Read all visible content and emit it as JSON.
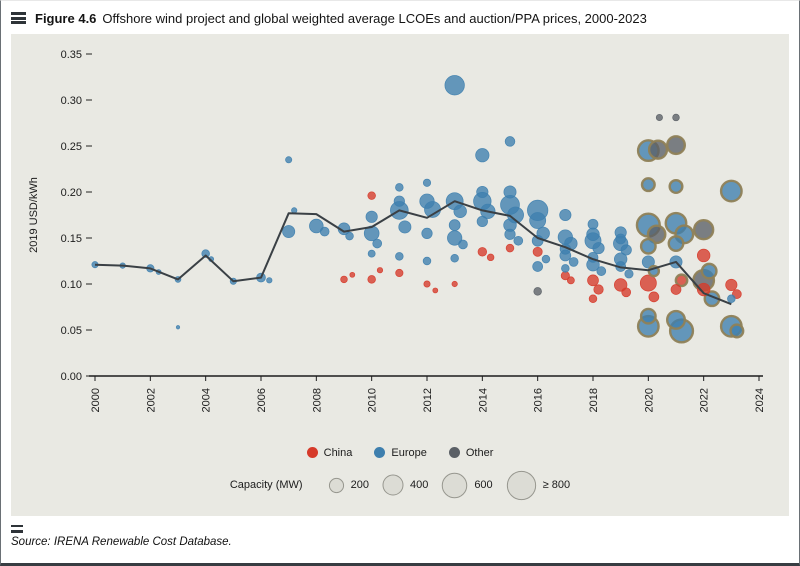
{
  "figure": {
    "label": "Figure 4.6",
    "title": "Offshore wind project and global weighted average LCOEs and auction/PPA prices, 2000-2023"
  },
  "source": "Source: IRENA Renewable Cost Database.",
  "chart_data": {
    "type": "scatter",
    "title": "Offshore wind project and global weighted average LCOEs and auction/PPA prices, 2000-2023",
    "xlabel": "",
    "ylabel": "2019 USD/kWh",
    "xlim": [
      2000,
      2024
    ],
    "ylim": [
      0,
      0.35
    ],
    "xticks": [
      2000,
      2002,
      2004,
      2006,
      2008,
      2010,
      2012,
      2014,
      2016,
      2018,
      2020,
      2022,
      2024
    ],
    "yticks": [
      0.0,
      0.05,
      0.1,
      0.15,
      0.2,
      0.25,
      0.3,
      0.35
    ],
    "grid": false,
    "legend": {
      "position": "bottom",
      "groups": [
        {
          "label": "China",
          "color": "#d63a2a"
        },
        {
          "label": "Europe",
          "color": "#3e7fae"
        },
        {
          "label": "Other",
          "color": "#5b6066"
        }
      ]
    },
    "capacity_legend": {
      "label": "Capacity (MW)",
      "entries": [
        {
          "label": "200",
          "mw": 200
        },
        {
          "label": "400",
          "mw": 400
        },
        {
          "label": "600",
          "mw": 600
        },
        {
          "label": "≥ 800",
          "mw": 800
        }
      ]
    },
    "colors": {
      "china": "#d63a2a",
      "europe": "#3e7fae",
      "other": "#5b6066",
      "auction_outline": "#8f8157",
      "avg_line": "#3a4045",
      "panel_bg": "#e9e9e3",
      "capacity_fill": "#dcdcd5",
      "capacity_stroke": "#97978f"
    },
    "avg_line": {
      "name": "Global weighted average",
      "x": [
        2000,
        2001,
        2002,
        2003,
        2004,
        2005,
        2006,
        2007,
        2008,
        2009,
        2010,
        2011,
        2012,
        2013,
        2014,
        2015,
        2016,
        2017,
        2018,
        2019,
        2020,
        2021,
        2022,
        2023
      ],
      "y": [
        0.121,
        0.12,
        0.117,
        0.105,
        0.131,
        0.103,
        0.107,
        0.177,
        0.176,
        0.157,
        0.162,
        0.18,
        0.172,
        0.19,
        0.18,
        0.174,
        0.15,
        0.14,
        0.127,
        0.118,
        0.115,
        0.124,
        0.09,
        0.078
      ]
    },
    "points_format": [
      "year",
      "lcoe_usd_per_kwh",
      "capacity_mw",
      "group",
      "auction_outlined"
    ],
    "points": [
      [
        2000,
        0.121,
        40,
        "europe",
        0
      ],
      [
        2001,
        0.12,
        30,
        "europe",
        0
      ],
      [
        2002,
        0.117,
        55,
        "europe",
        0
      ],
      [
        2002.3,
        0.113,
        25,
        "europe",
        0
      ],
      [
        2003,
        0.105,
        35,
        "europe",
        0
      ],
      [
        2003,
        0.053,
        12,
        "europe",
        0
      ],
      [
        2004,
        0.133,
        60,
        "europe",
        0
      ],
      [
        2004.2,
        0.127,
        25,
        "europe",
        0
      ],
      [
        2005,
        0.103,
        40,
        "europe",
        0
      ],
      [
        2006,
        0.107,
        80,
        "europe",
        0
      ],
      [
        2006.3,
        0.104,
        30,
        "europe",
        0
      ],
      [
        2007,
        0.235,
        40,
        "europe",
        0
      ],
      [
        2007,
        0.157,
        150,
        "europe",
        0
      ],
      [
        2007.2,
        0.18,
        30,
        "europe",
        0
      ],
      [
        2008,
        0.163,
        190,
        "europe",
        0
      ],
      [
        2008.3,
        0.157,
        80,
        "europe",
        0
      ],
      [
        2009,
        0.16,
        140,
        "europe",
        0
      ],
      [
        2009.2,
        0.152,
        60,
        "europe",
        0
      ],
      [
        2009,
        0.105,
        45,
        "china",
        0
      ],
      [
        2009.3,
        0.11,
        25,
        "china",
        0
      ],
      [
        2010,
        0.196,
        60,
        "china",
        0
      ],
      [
        2010,
        0.173,
        130,
        "europe",
        0
      ],
      [
        2010,
        0.155,
        220,
        "europe",
        0
      ],
      [
        2010.2,
        0.144,
        80,
        "europe",
        0
      ],
      [
        2010,
        0.133,
        50,
        "europe",
        0
      ],
      [
        2010,
        0.105,
        60,
        "china",
        0
      ],
      [
        2010.3,
        0.115,
        30,
        "china",
        0
      ],
      [
        2011,
        0.205,
        60,
        "europe",
        0
      ],
      [
        2011,
        0.19,
        110,
        "europe",
        0
      ],
      [
        2011,
        0.18,
        320,
        "europe",
        0
      ],
      [
        2011.2,
        0.162,
        150,
        "europe",
        0
      ],
      [
        2011,
        0.13,
        60,
        "europe",
        0
      ],
      [
        2011,
        0.112,
        55,
        "china",
        0
      ],
      [
        2012,
        0.21,
        55,
        "europe",
        0
      ],
      [
        2012,
        0.19,
        210,
        "europe",
        0
      ],
      [
        2012.2,
        0.181,
        260,
        "europe",
        0
      ],
      [
        2012,
        0.155,
        110,
        "europe",
        0
      ],
      [
        2012,
        0.125,
        60,
        "europe",
        0
      ],
      [
        2012,
        0.1,
        40,
        "china",
        0
      ],
      [
        2012.3,
        0.093,
        25,
        "china",
        0
      ],
      [
        2013,
        0.316,
        380,
        "europe",
        0
      ],
      [
        2013,
        0.19,
        290,
        "europe",
        0
      ],
      [
        2013.2,
        0.179,
        160,
        "europe",
        0
      ],
      [
        2013,
        0.164,
        120,
        "europe",
        0
      ],
      [
        2013,
        0.15,
        210,
        "europe",
        0
      ],
      [
        2013.3,
        0.143,
        80,
        "europe",
        0
      ],
      [
        2013,
        0.128,
        60,
        "europe",
        0
      ],
      [
        2013,
        0.1,
        30,
        "china",
        0
      ],
      [
        2014,
        0.24,
        180,
        "europe",
        0
      ],
      [
        2014,
        0.2,
        130,
        "europe",
        0
      ],
      [
        2014,
        0.19,
        310,
        "europe",
        0
      ],
      [
        2014.2,
        0.179,
        210,
        "europe",
        0
      ],
      [
        2014,
        0.168,
        110,
        "europe",
        0
      ],
      [
        2014,
        0.135,
        75,
        "china",
        0
      ],
      [
        2014.3,
        0.129,
        45,
        "china",
        0
      ],
      [
        2015,
        0.255,
        95,
        "europe",
        0
      ],
      [
        2015,
        0.2,
        150,
        "europe",
        0
      ],
      [
        2015,
        0.186,
        360,
        "europe",
        0
      ],
      [
        2015.2,
        0.175,
        260,
        "europe",
        0
      ],
      [
        2015,
        0.164,
        160,
        "europe",
        0
      ],
      [
        2015,
        0.154,
        110,
        "europe",
        0
      ],
      [
        2015.3,
        0.147,
        80,
        "europe",
        0
      ],
      [
        2015,
        0.139,
        60,
        "china",
        0
      ],
      [
        2016,
        0.18,
        420,
        "europe",
        0
      ],
      [
        2016,
        0.169,
        260,
        "europe",
        0
      ],
      [
        2016.2,
        0.155,
        160,
        "europe",
        0
      ],
      [
        2016,
        0.147,
        120,
        "europe",
        0
      ],
      [
        2016,
        0.135,
        85,
        "china",
        0
      ],
      [
        2016.3,
        0.127,
        60,
        "europe",
        0
      ],
      [
        2016,
        0.119,
        100,
        "europe",
        0
      ],
      [
        2016,
        0.092,
        60,
        "other",
        0
      ],
      [
        2017,
        0.175,
        130,
        "europe",
        0
      ],
      [
        2017,
        0.151,
        210,
        "europe",
        0
      ],
      [
        2017.2,
        0.144,
        160,
        "europe",
        0
      ],
      [
        2017,
        0.138,
        110,
        "europe",
        0
      ],
      [
        2017,
        0.131,
        120,
        "europe",
        0
      ],
      [
        2017.3,
        0.124,
        80,
        "europe",
        0
      ],
      [
        2017,
        0.117,
        60,
        "europe",
        0
      ],
      [
        2017,
        0.109,
        70,
        "china",
        0
      ],
      [
        2017.2,
        0.104,
        50,
        "china",
        0
      ],
      [
        2018,
        0.165,
        100,
        "europe",
        0
      ],
      [
        2018,
        0.154,
        160,
        "europe",
        0
      ],
      [
        2018,
        0.147,
        260,
        "europe",
        0
      ],
      [
        2018.2,
        0.139,
        130,
        "europe",
        0
      ],
      [
        2018,
        0.129,
        100,
        "europe",
        0
      ],
      [
        2018,
        0.121,
        160,
        "europe",
        0
      ],
      [
        2018.3,
        0.114,
        80,
        "europe",
        0
      ],
      [
        2018,
        0.104,
        120,
        "china",
        0
      ],
      [
        2018.2,
        0.094,
        90,
        "china",
        0
      ],
      [
        2018,
        0.084,
        60,
        "china",
        0
      ],
      [
        2019,
        0.156,
        130,
        "europe",
        0
      ],
      [
        2019,
        0.149,
        100,
        "europe",
        0
      ],
      [
        2019,
        0.144,
        210,
        "europe",
        0
      ],
      [
        2019.2,
        0.137,
        110,
        "europe",
        0
      ],
      [
        2019,
        0.127,
        160,
        "europe",
        0
      ],
      [
        2019,
        0.119,
        100,
        "europe",
        0
      ],
      [
        2019.3,
        0.111,
        70,
        "europe",
        0
      ],
      [
        2019,
        0.099,
        160,
        "china",
        0
      ],
      [
        2019.2,
        0.091,
        80,
        "china",
        0
      ],
      [
        2020,
        0.245,
        420,
        "europe",
        1
      ],
      [
        2020.35,
        0.246,
        320,
        "other",
        1
      ],
      [
        2020,
        0.208,
        160,
        "europe",
        1
      ],
      [
        2020,
        0.164,
        520,
        "europe",
        1
      ],
      [
        2020.3,
        0.154,
        300,
        "other",
        1
      ],
      [
        2020,
        0.141,
        210,
        "europe",
        1
      ],
      [
        2020,
        0.124,
        150,
        "europe",
        0
      ],
      [
        2020.2,
        0.114,
        100,
        "europe",
        1
      ],
      [
        2020,
        0.101,
        260,
        "china",
        0
      ],
      [
        2020.2,
        0.086,
        100,
        "china",
        0
      ],
      [
        2020,
        0.065,
        210,
        "europe",
        1
      ],
      [
        2020,
        0.054,
        420,
        "europe",
        1
      ],
      [
        2020.4,
        0.281,
        40,
        "other",
        0
      ],
      [
        2021,
        0.281,
        45,
        "other",
        0
      ],
      [
        2021,
        0.251,
        310,
        "other",
        1
      ],
      [
        2021,
        0.206,
        160,
        "europe",
        1
      ],
      [
        2021,
        0.166,
        420,
        "europe",
        1
      ],
      [
        2021.3,
        0.154,
        310,
        "europe",
        1
      ],
      [
        2021,
        0.144,
        210,
        "europe",
        1
      ],
      [
        2021,
        0.124,
        150,
        "europe",
        0
      ],
      [
        2021.2,
        0.104,
        130,
        "china",
        1
      ],
      [
        2021,
        0.094,
        100,
        "china",
        0
      ],
      [
        2021,
        0.061,
        310,
        "europe",
        1
      ],
      [
        2021.2,
        0.049,
        520,
        "europe",
        1
      ],
      [
        2022,
        0.159,
        360,
        "other",
        1
      ],
      [
        2022,
        0.131,
        160,
        "china",
        0
      ],
      [
        2022.2,
        0.114,
        210,
        "europe",
        1
      ],
      [
        2022,
        0.104,
        420,
        "other",
        1
      ],
      [
        2022,
        0.094,
        160,
        "china",
        0
      ],
      [
        2022.3,
        0.084,
        210,
        "europe",
        1
      ],
      [
        2023,
        0.201,
        420,
        "europe",
        1
      ],
      [
        2023,
        0.099,
        130,
        "china",
        0
      ],
      [
        2023.2,
        0.089,
        80,
        "china",
        0
      ],
      [
        2023,
        0.084,
        60,
        "europe",
        0
      ],
      [
        2023,
        0.054,
        420,
        "europe",
        1
      ],
      [
        2023.2,
        0.049,
        160,
        "europe",
        1
      ]
    ]
  }
}
